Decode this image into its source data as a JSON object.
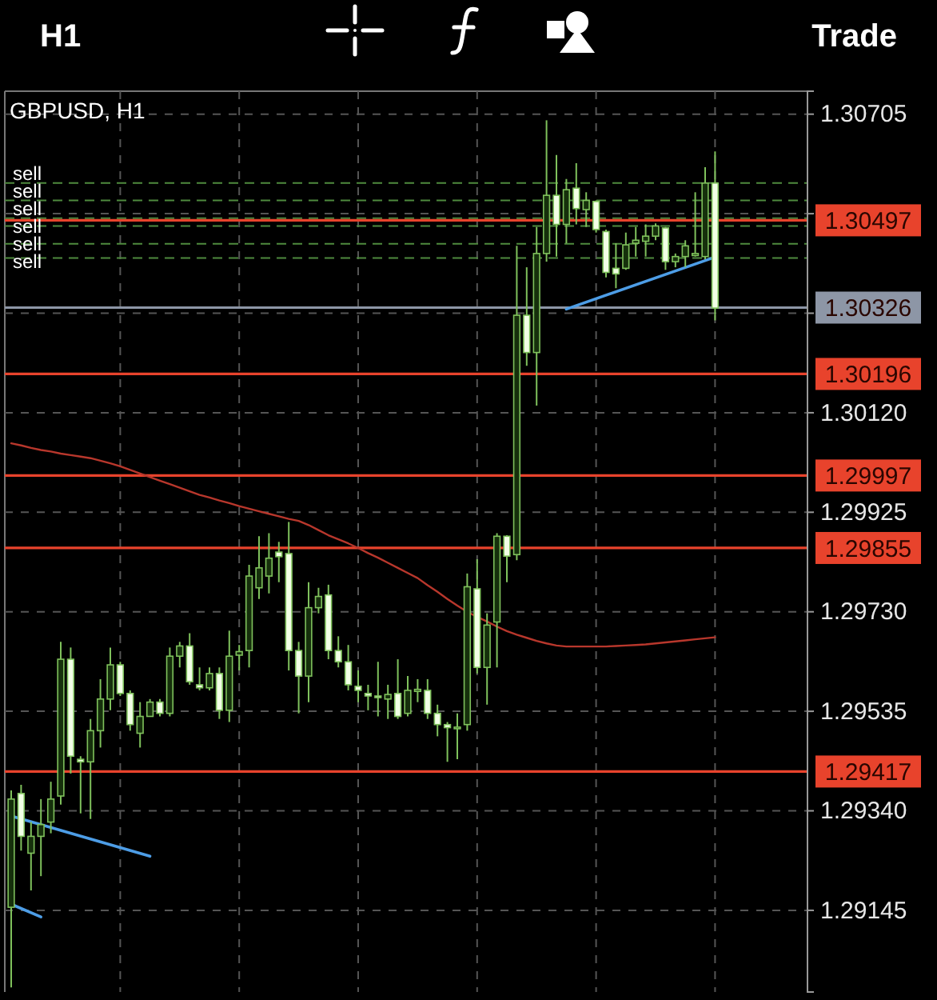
{
  "chart_data": {
    "type": "candlestick",
    "title": "GBPUSD, H1",
    "annotations": [
      "H1",
      "Trade"
    ],
    "color": "#7fc15c",
    "grid": true,
    "tick_labels": "y",
    "ylim": [
      1.28985,
      1.3075
    ],
    "yticks": [
      {
        "value": 1.30705,
        "label": "1.30705"
      },
      {
        "value": 1.3051,
        "label": null
      },
      {
        "value": 1.30315,
        "label": null
      },
      {
        "value": 1.3012,
        "label": "1.30120"
      },
      {
        "value": 1.29925,
        "label": "1.29925"
      },
      {
        "value": 1.2973,
        "label": "1.29730"
      },
      {
        "value": 1.29535,
        "label": "1.29535"
      },
      {
        "value": 1.2934,
        "label": "1.29340"
      },
      {
        "value": 1.29145,
        "label": "1.29145"
      }
    ],
    "categories": [
      null,
      null,
      null,
      null,
      null,
      null,
      null,
      null,
      null,
      null,
      null,
      null,
      null,
      null,
      null,
      null,
      null,
      null,
      null,
      null,
      null,
      null,
      null,
      null,
      null,
      null,
      null,
      null,
      null,
      null,
      null,
      null,
      null,
      null,
      null,
      null,
      null,
      null,
      null,
      null,
      null,
      null,
      null,
      null,
      null,
      null,
      null,
      null,
      null,
      null,
      null,
      null,
      null,
      null,
      null,
      null,
      null,
      null,
      null,
      null,
      null,
      null,
      null,
      null,
      null,
      null,
      null,
      null,
      null,
      null,
      null,
      null
    ],
    "ohlc": [
      [
        1.29151,
        1.2938,
        1.28994,
        1.29363
      ],
      [
        1.29374,
        1.29391,
        1.29262,
        1.2929
      ],
      [
        1.29257,
        1.29318,
        1.29184,
        1.2929
      ],
      [
        1.2929,
        1.29363,
        1.29212,
        1.29313
      ],
      [
        1.29318,
        1.29397,
        1.29296,
        1.29363
      ],
      [
        1.29369,
        1.29671,
        1.29352,
        1.29637
      ],
      [
        1.29637,
        1.2966,
        1.29413,
        1.29447
      ],
      [
        1.29441,
        1.29447,
        1.29335,
        1.29436
      ],
      [
        1.29436,
        1.2952,
        1.29324,
        1.29497
      ],
      [
        1.29497,
        1.29598,
        1.29464,
        1.29559
      ],
      [
        1.29559,
        1.2966,
        1.29537,
        1.29626
      ],
      [
        1.29626,
        1.29632,
        1.29565,
        1.2957
      ],
      [
        1.2957,
        1.29576,
        1.29497,
        1.29509
      ],
      [
        1.29492,
        1.29553,
        1.29464,
        1.29525
      ],
      [
        1.29525,
        1.29559,
        1.29525,
        1.29553
      ],
      [
        1.29553,
        1.29559,
        1.29525,
        1.29531
      ],
      [
        1.29531,
        1.2966,
        1.29525,
        1.29643
      ],
      [
        1.29643,
        1.29671,
        1.29621,
        1.29663
      ],
      [
        1.29663,
        1.29688,
        1.29587,
        1.29593
      ],
      [
        1.29587,
        1.29621,
        1.29576,
        1.29581
      ],
      [
        1.29581,
        1.29621,
        1.29576,
        1.29609
      ],
      [
        1.29609,
        1.29621,
        1.2952,
        1.29537
      ],
      [
        1.29537,
        1.29693,
        1.29514,
        1.29643
      ],
      [
        1.29645,
        1.29665,
        1.29615,
        1.29652
      ],
      [
        1.29654,
        1.29822,
        1.29621,
        1.298
      ],
      [
        1.29777,
        1.29878,
        1.29755,
        1.29816
      ],
      [
        1.298,
        1.29884,
        1.29766,
        1.29835
      ],
      [
        1.29847,
        1.29867,
        1.29788,
        1.29838
      ],
      [
        1.29844,
        1.29906,
        1.29615,
        1.29654
      ],
      [
        1.29654,
        1.29671,
        1.29531,
        1.29604
      ],
      [
        1.29604,
        1.29788,
        1.29553,
        1.29738
      ],
      [
        1.29738,
        1.29777,
        1.29727,
        1.2976
      ],
      [
        1.29763,
        1.29783,
        1.29637,
        1.29654
      ],
      [
        1.29654,
        1.29682,
        1.29621,
        1.29632
      ],
      [
        1.29632,
        1.29665,
        1.29576,
        1.29587
      ],
      [
        1.29584,
        1.29615,
        1.29553,
        1.29576
      ],
      [
        1.2957,
        1.29587,
        1.29537,
        1.29565
      ],
      [
        1.29565,
        1.29632,
        1.29525,
        1.29562
      ],
      [
        1.29559,
        1.29587,
        1.2952,
        1.29568
      ],
      [
        1.2957,
        1.29637,
        1.2952,
        1.29525
      ],
      [
        1.29531,
        1.29604,
        1.29525,
        1.29576
      ],
      [
        1.29574,
        1.29598,
        1.29553,
        1.29578
      ],
      [
        1.29576,
        1.29598,
        1.2952,
        1.29531
      ],
      [
        1.29531,
        1.29548,
        1.29486,
        1.29509
      ],
      [
        1.29509,
        1.29514,
        1.29436,
        1.29503
      ],
      [
        1.29503,
        1.29531,
        1.29441,
        1.29504
      ],
      [
        1.29509,
        1.29805,
        1.29497,
        1.29779
      ],
      [
        1.29775,
        1.29833,
        1.29609,
        1.29621
      ],
      [
        1.29621,
        1.29727,
        1.29548,
        1.29704
      ],
      [
        1.2971,
        1.29884,
        1.29621,
        1.29878
      ],
      [
        1.29878,
        1.2988,
        1.29788,
        1.29839
      ],
      [
        1.29842,
        1.30447,
        1.29831,
        1.30311
      ],
      [
        1.30311,
        1.30405,
        1.30212,
        1.30238
      ],
      [
        1.30238,
        1.30484,
        1.30134,
        1.30432
      ],
      [
        1.30432,
        1.30693,
        1.30416,
        1.30546
      ],
      [
        1.30546,
        1.30625,
        1.30426,
        1.30489
      ],
      [
        1.30489,
        1.30578,
        1.30452,
        1.30557
      ],
      [
        1.3056,
        1.30609,
        1.30489,
        1.3052
      ],
      [
        1.30518,
        1.30552,
        1.30484,
        1.30536
      ],
      [
        1.30534,
        1.30536,
        1.30473,
        1.30479
      ],
      [
        1.30475,
        1.30479,
        1.30385,
        1.30395
      ],
      [
        1.30403,
        1.30452,
        1.30364,
        1.30392
      ],
      [
        1.30403,
        1.30473,
        1.304,
        1.30449
      ],
      [
        1.30452,
        1.30484,
        1.30426,
        1.30458
      ],
      [
        1.30456,
        1.30489,
        1.30426,
        1.30466
      ],
      [
        1.30466,
        1.30491,
        1.30458,
        1.30486
      ],
      [
        1.30482,
        1.30484,
        1.304,
        1.30416
      ],
      [
        1.30416,
        1.30432,
        1.30405,
        1.30426
      ],
      [
        1.30426,
        1.30458,
        1.30405,
        1.30447
      ],
      [
        1.30428,
        1.30552,
        1.30426,
        1.30432
      ],
      [
        1.30426,
        1.30601,
        1.30421,
        1.3057
      ],
      [
        1.3057,
        1.30632,
        1.30301,
        1.30325
      ]
    ],
    "series": [
      {
        "type": "line",
        "color": "#b8372c",
        "values": [
          1.3006,
          1.30056,
          1.30051,
          1.30047,
          1.30044,
          1.3004,
          1.30037,
          1.30034,
          1.30031,
          1.30026,
          1.30021,
          1.30015,
          1.30008,
          1.30001,
          1.29994,
          1.29987,
          1.2998,
          1.29973,
          1.29966,
          1.29959,
          1.29954,
          1.29948,
          1.29943,
          1.29937,
          1.29932,
          1.29927,
          1.29922,
          1.29917,
          1.29912,
          1.29908,
          1.299,
          1.2989,
          1.2988,
          1.29872,
          1.29864,
          1.29855,
          1.29845,
          1.29836,
          1.29826,
          1.29816,
          1.29806,
          1.29796,
          1.29782,
          1.29769,
          1.29755,
          1.29742,
          1.2973,
          1.2972,
          1.29711,
          1.29701,
          1.29692,
          1.29685,
          1.29679,
          1.29673,
          1.29668,
          1.29664,
          1.29662,
          1.29662,
          1.29662,
          1.29662,
          1.29662,
          1.29663,
          1.29664,
          1.29665,
          1.29666,
          1.29668,
          1.2967,
          1.29672,
          1.29674,
          1.29676,
          1.29678,
          1.2968
        ]
      },
      {
        "type": "line",
        "color": "#4d9de6",
        "values": [
          1.2933,
          null,
          null,
          null,
          null,
          null,
          null,
          null,
          null,
          null,
          null,
          null,
          null,
          null,
          1.29251,
          null,
          null,
          null,
          null,
          null,
          null,
          null,
          null,
          null,
          null,
          null,
          null,
          null,
          null,
          null,
          null,
          null,
          null,
          null,
          null,
          null,
          null,
          null,
          null,
          null,
          null,
          null,
          null,
          null,
          null,
          null,
          null,
          null,
          null,
          null,
          null,
          null,
          null,
          null,
          null,
          null,
          null,
          null,
          null,
          null,
          null,
          null,
          null,
          null,
          null,
          null,
          null,
          null,
          null,
          null,
          null,
          null
        ]
      },
      {
        "type": "line",
        "color": "#4d9de6",
        "values": [
          1.29157,
          null,
          null,
          1.29132,
          null,
          null,
          null,
          null,
          null,
          null,
          null,
          null,
          null,
          null,
          null,
          null,
          null,
          null,
          null,
          null,
          null,
          null,
          null,
          null,
          null,
          null,
          null,
          null,
          null,
          null,
          null,
          null,
          null,
          null,
          null,
          null,
          null,
          null,
          null,
          null,
          null,
          null,
          null,
          null,
          null,
          null,
          null,
          null,
          null,
          null,
          null,
          null,
          null,
          null,
          null,
          null,
          null,
          null,
          null,
          null,
          null,
          null,
          null,
          null,
          null,
          null,
          null,
          null,
          null,
          null,
          null,
          null
        ]
      },
      {
        "type": "line",
        "color": "#4d9de6",
        "values": [
          null,
          null,
          null,
          null,
          null,
          null,
          null,
          null,
          null,
          null,
          null,
          null,
          null,
          null,
          null,
          null,
          null,
          null,
          null,
          null,
          null,
          null,
          null,
          null,
          null,
          null,
          null,
          null,
          null,
          null,
          null,
          null,
          null,
          null,
          null,
          null,
          null,
          null,
          null,
          null,
          null,
          null,
          null,
          null,
          null,
          null,
          null,
          null,
          null,
          null,
          null,
          null,
          null,
          null,
          null,
          null,
          1.30323,
          null,
          null,
          null,
          null,
          null,
          null,
          null,
          null,
          null,
          null,
          null,
          null,
          null,
          null,
          1.30425
        ]
      }
    ],
    "ref_lines": [
      {
        "axis": "y",
        "value": 1.3057,
        "label": "sell",
        "color": "#4f8a3e",
        "line_style": "dashed"
      },
      {
        "axis": "y",
        "value": 1.30536,
        "label": "sell",
        "color": "#4f8a3e",
        "line_style": "dashed"
      },
      {
        "axis": "y",
        "value": 1.30501,
        "label": "sell",
        "color": "#4f8a3e",
        "line_style": "dashed"
      },
      {
        "axis": "y",
        "value": 1.30486,
        "label": "sell",
        "color": "#4f8a3e",
        "line_style": "dashed"
      },
      {
        "axis": "y",
        "value": 1.30451,
        "label": "sell",
        "color": "#4f8a3e",
        "line_style": "dashed"
      },
      {
        "axis": "y",
        "value": 1.30423,
        "label": "sell",
        "color": "#4f8a3e",
        "line_style": "dashed"
      },
      {
        "axis": "y",
        "value": 1.30497,
        "label": "1.30497",
        "color": "#e8432c",
        "line_style": "solid"
      },
      {
        "axis": "y",
        "value": 1.30326,
        "label": "1.30326",
        "color": "#8d96a6",
        "line_style": "solid"
      },
      {
        "axis": "y",
        "value": 1.30196,
        "label": "1.30196",
        "color": "#e8432c",
        "line_style": "solid"
      },
      {
        "axis": "y",
        "value": 1.29997,
        "label": "1.29997",
        "color": "#e8432c",
        "line_style": "solid"
      },
      {
        "axis": "y",
        "value": 1.29855,
        "label": "1.29855",
        "color": "#e8432c",
        "line_style": "solid"
      },
      {
        "axis": "y",
        "value": 1.29417,
        "label": "1.29417",
        "color": "#e8432c",
        "line_style": "solid"
      }
    ]
  }
}
